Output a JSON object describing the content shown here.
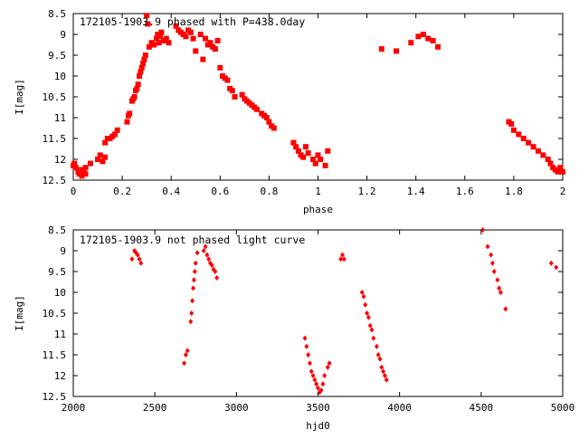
{
  "colors": {
    "points": "#ff0000",
    "frame": "#000000",
    "background": "#ffffff"
  },
  "chart_data": [
    {
      "type": "scatter",
      "title": "172105-1903.9 phased with P=438.0day",
      "xlabel": "phase",
      "ylabel": "I[mag]",
      "xlim": [
        0,
        2
      ],
      "ylim": [
        12.5,
        8.5
      ],
      "y_inverted": true,
      "grid": false,
      "legend": "none",
      "marker": "filled-square",
      "xticks": [
        0,
        0.2,
        0.4,
        0.6,
        0.8,
        1,
        1.2,
        1.4,
        1.6,
        1.8,
        2
      ],
      "xtick_labels": [
        "0",
        "0.2",
        "0.4",
        "0.6",
        "0.8",
        "1",
        "1.2",
        "1.4",
        "1.6",
        "1.8",
        "2"
      ],
      "yticks": [
        8.5,
        9,
        9.5,
        10,
        10.5,
        11,
        11.5,
        12,
        12.5
      ],
      "ytick_labels": [
        "8.5",
        "9",
        "9.5",
        "10",
        "10.5",
        "11",
        "11.5",
        "12",
        "12.5"
      ],
      "points": [
        [
          0.0,
          12.15
        ],
        [
          0.005,
          12.1
        ],
        [
          0.01,
          12.2
        ],
        [
          0.02,
          12.3
        ],
        [
          0.025,
          12.35
        ],
        [
          0.03,
          12.25
        ],
        [
          0.035,
          12.4
        ],
        [
          0.04,
          12.3
        ],
        [
          0.05,
          12.2
        ],
        [
          0.05,
          12.35
        ],
        [
          0.07,
          12.1
        ],
        [
          0.1,
          12.0
        ],
        [
          0.11,
          11.9
        ],
        [
          0.12,
          12.05
        ],
        [
          0.13,
          11.95
        ],
        [
          0.13,
          11.6
        ],
        [
          0.14,
          11.5
        ],
        [
          0.15,
          11.5
        ],
        [
          0.16,
          11.45
        ],
        [
          0.17,
          11.4
        ],
        [
          0.18,
          11.3
        ],
        [
          0.22,
          11.1
        ],
        [
          0.225,
          10.95
        ],
        [
          0.23,
          10.9
        ],
        [
          0.24,
          10.6
        ],
        [
          0.245,
          10.55
        ],
        [
          0.25,
          10.5
        ],
        [
          0.255,
          10.35
        ],
        [
          0.26,
          10.3
        ],
        [
          0.265,
          10.2
        ],
        [
          0.27,
          10.0
        ],
        [
          0.275,
          9.9
        ],
        [
          0.28,
          9.8
        ],
        [
          0.285,
          9.7
        ],
        [
          0.29,
          9.6
        ],
        [
          0.295,
          9.5
        ],
        [
          0.3,
          8.55
        ],
        [
          0.305,
          8.75
        ],
        [
          0.31,
          9.3
        ],
        [
          0.32,
          9.2
        ],
        [
          0.33,
          9.25
        ],
        [
          0.34,
          9.1
        ],
        [
          0.345,
          9.0
        ],
        [
          0.35,
          9.2
        ],
        [
          0.355,
          9.05
        ],
        [
          0.36,
          8.95
        ],
        [
          0.37,
          9.15
        ],
        [
          0.38,
          9.1
        ],
        [
          0.39,
          9.2
        ],
        [
          0.42,
          8.8
        ],
        [
          0.43,
          8.9
        ],
        [
          0.44,
          8.95
        ],
        [
          0.45,
          9.0
        ],
        [
          0.46,
          9.05
        ],
        [
          0.47,
          8.9
        ],
        [
          0.48,
          8.95
        ],
        [
          0.49,
          9.1
        ],
        [
          0.5,
          9.4
        ],
        [
          0.52,
          9.0
        ],
        [
          0.53,
          9.6
        ],
        [
          0.54,
          9.1
        ],
        [
          0.55,
          9.25
        ],
        [
          0.56,
          9.2
        ],
        [
          0.57,
          9.3
        ],
        [
          0.58,
          9.35
        ],
        [
          0.59,
          9.15
        ],
        [
          0.6,
          9.8
        ],
        [
          0.61,
          10.0
        ],
        [
          0.62,
          10.05
        ],
        [
          0.63,
          10.1
        ],
        [
          0.64,
          10.3
        ],
        [
          0.65,
          10.35
        ],
        [
          0.66,
          10.5
        ],
        [
          0.69,
          10.45
        ],
        [
          0.7,
          10.55
        ],
        [
          0.71,
          10.6
        ],
        [
          0.72,
          10.65
        ],
        [
          0.73,
          10.7
        ],
        [
          0.74,
          10.75
        ],
        [
          0.75,
          10.8
        ],
        [
          0.77,
          10.9
        ],
        [
          0.78,
          10.95
        ],
        [
          0.79,
          11.0
        ],
        [
          0.8,
          11.1
        ],
        [
          0.81,
          11.2
        ],
        [
          0.82,
          11.25
        ],
        [
          0.9,
          11.6
        ],
        [
          0.91,
          11.7
        ],
        [
          0.92,
          11.8
        ],
        [
          0.93,
          11.9
        ],
        [
          0.94,
          11.95
        ],
        [
          0.95,
          11.7
        ],
        [
          0.96,
          11.85
        ],
        [
          0.98,
          12.0
        ],
        [
          0.99,
          12.1
        ],
        [
          1.0,
          11.9
        ],
        [
          1.01,
          12.0
        ],
        [
          1.03,
          12.15
        ],
        [
          1.04,
          11.8
        ],
        [
          1.26,
          9.35
        ],
        [
          1.32,
          9.4
        ],
        [
          1.38,
          9.2
        ],
        [
          1.41,
          9.05
        ],
        [
          1.43,
          9.0
        ],
        [
          1.45,
          9.1
        ],
        [
          1.47,
          9.15
        ],
        [
          1.49,
          9.3
        ],
        [
          1.78,
          11.1
        ],
        [
          1.79,
          11.15
        ],
        [
          1.8,
          11.3
        ],
        [
          1.82,
          11.4
        ],
        [
          1.84,
          11.5
        ],
        [
          1.86,
          11.6
        ],
        [
          1.88,
          11.7
        ],
        [
          1.9,
          11.8
        ],
        [
          1.92,
          11.9
        ],
        [
          1.94,
          12.0
        ],
        [
          1.95,
          12.1
        ],
        [
          1.96,
          12.2
        ],
        [
          1.97,
          12.25
        ],
        [
          1.98,
          12.3
        ],
        [
          1.99,
          12.2
        ],
        [
          2.0,
          12.3
        ]
      ]
    },
    {
      "type": "scatter",
      "title": "172105-1903.9 not phased light curve",
      "xlabel": "hjd0",
      "ylabel": "I[mag]",
      "xlim": [
        2000,
        5000
      ],
      "ylim": [
        12.5,
        8.5
      ],
      "y_inverted": true,
      "grid": false,
      "legend": "none",
      "marker": "filled-diamond",
      "xticks": [
        2000,
        2500,
        3000,
        3500,
        4000,
        4500,
        5000
      ],
      "xtick_labels": [
        "2000",
        "2500",
        "3000",
        "3500",
        "4000",
        "4500",
        "5000"
      ],
      "yticks": [
        8.5,
        9,
        9.5,
        10,
        10.5,
        11,
        11.5,
        12,
        12.5
      ],
      "ytick_labels": [
        "8.5",
        "9",
        "9.5",
        "10",
        "10.5",
        "11",
        "11.5",
        "12",
        "12.5"
      ],
      "points": [
        [
          2360,
          9.2
        ],
        [
          2375,
          9.0
        ],
        [
          2385,
          9.05
        ],
        [
          2395,
          9.1
        ],
        [
          2405,
          9.2
        ],
        [
          2415,
          9.3
        ],
        [
          2680,
          11.7
        ],
        [
          2690,
          11.5
        ],
        [
          2700,
          11.4
        ],
        [
          2720,
          10.7
        ],
        [
          2725,
          10.5
        ],
        [
          2730,
          10.2
        ],
        [
          2735,
          9.9
        ],
        [
          2740,
          9.7
        ],
        [
          2745,
          9.5
        ],
        [
          2750,
          9.3
        ],
        [
          2760,
          9.05
        ],
        [
          2800,
          9.0
        ],
        [
          2810,
          8.9
        ],
        [
          2820,
          9.1
        ],
        [
          2830,
          9.2
        ],
        [
          2840,
          9.3
        ],
        [
          2850,
          9.35
        ],
        [
          2860,
          9.45
        ],
        [
          2870,
          9.5
        ],
        [
          2880,
          9.65
        ],
        [
          3420,
          11.1
        ],
        [
          3430,
          11.3
        ],
        [
          3440,
          11.5
        ],
        [
          3450,
          11.7
        ],
        [
          3460,
          11.9
        ],
        [
          3470,
          12.0
        ],
        [
          3480,
          12.1
        ],
        [
          3490,
          12.2
        ],
        [
          3500,
          12.3
        ],
        [
          3510,
          12.4
        ],
        [
          3520,
          12.35
        ],
        [
          3530,
          12.2
        ],
        [
          3540,
          12.0
        ],
        [
          3560,
          11.8
        ],
        [
          3570,
          11.7
        ],
        [
          3640,
          9.2
        ],
        [
          3650,
          9.1
        ],
        [
          3660,
          9.2
        ],
        [
          3770,
          10.0
        ],
        [
          3780,
          10.1
        ],
        [
          3790,
          10.3
        ],
        [
          3800,
          10.5
        ],
        [
          3810,
          10.6
        ],
        [
          3820,
          10.8
        ],
        [
          3830,
          10.9
        ],
        [
          3840,
          11.1
        ],
        [
          3860,
          11.3
        ],
        [
          3870,
          11.5
        ],
        [
          3880,
          11.6
        ],
        [
          3890,
          11.8
        ],
        [
          3900,
          11.9
        ],
        [
          3910,
          12.0
        ],
        [
          3920,
          12.1
        ],
        [
          4510,
          8.5
        ],
        [
          4540,
          8.9
        ],
        [
          4560,
          9.1
        ],
        [
          4570,
          9.3
        ],
        [
          4580,
          9.5
        ],
        [
          4600,
          9.7
        ],
        [
          4610,
          9.9
        ],
        [
          4620,
          10.0
        ],
        [
          4650,
          10.4
        ],
        [
          4930,
          9.3
        ],
        [
          4960,
          9.4
        ]
      ]
    }
  ]
}
